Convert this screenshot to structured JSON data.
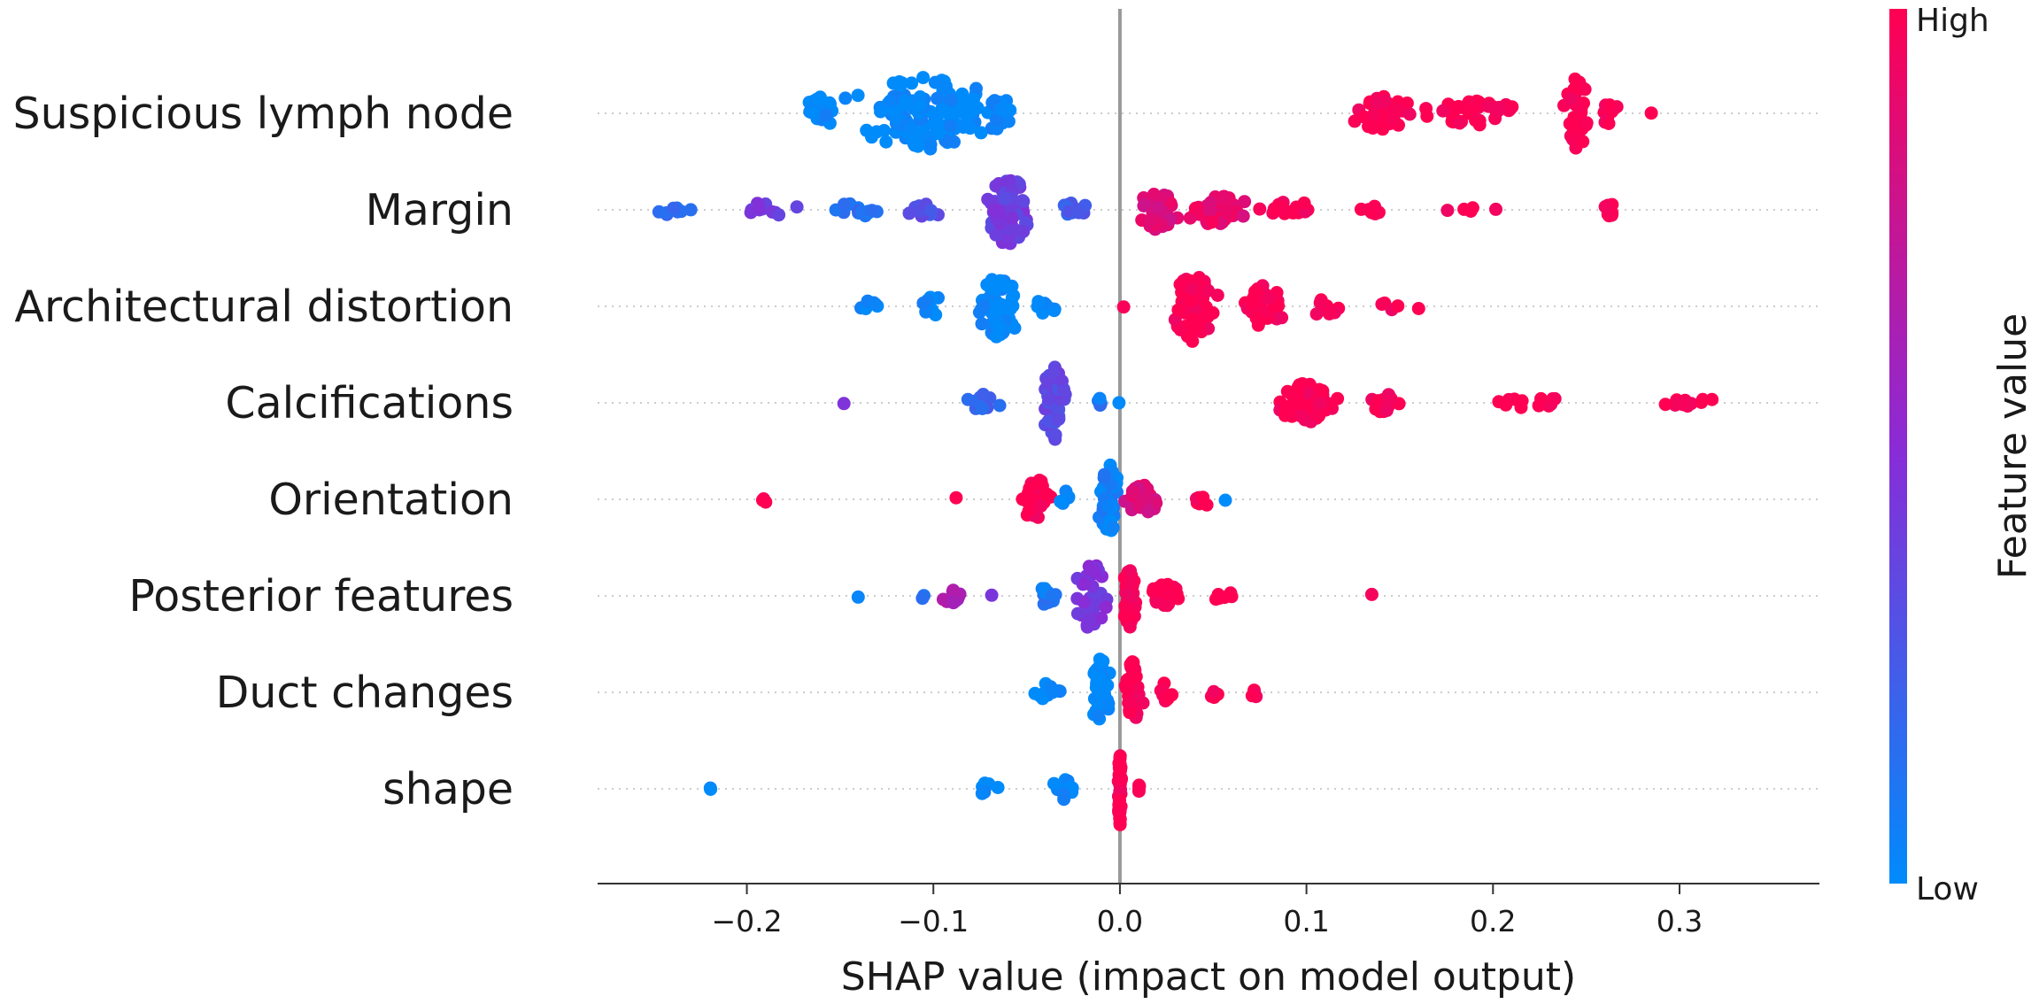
{
  "chart_data": {
    "type": "scatter",
    "subtype": "shap-beeswarm",
    "title": "",
    "xlabel": "SHAP value (impact on model output)",
    "ylabel": "",
    "xlim": [
      -0.28,
      0.375
    ],
    "xticks": [
      -0.2,
      -0.1,
      0.0,
      0.1,
      0.2,
      0.3
    ],
    "xtick_labels": [
      "−0.2",
      "−0.1",
      "0.0",
      "0.1",
      "0.2",
      "0.3"
    ],
    "zero_line": 0.0,
    "colorbar": {
      "label": "Feature value",
      "high_label": "High",
      "low_label": "Low",
      "high_color": "#ff0052",
      "low_color": "#008bfb"
    },
    "features": [
      {
        "name": "Suspicious lymph node",
        "clusters": [
          {
            "c": -0.105,
            "w": 0.055,
            "n": 140,
            "v": 0.0,
            "s": 1.0
          },
          {
            "c": -0.16,
            "w": 0.012,
            "n": 25,
            "v": 0.0,
            "s": 0.45
          },
          {
            "c": -0.065,
            "w": 0.008,
            "n": 20,
            "v": 0.0,
            "s": 0.45
          },
          {
            "c": 0.14,
            "w": 0.02,
            "n": 45,
            "v": 1.0,
            "s": 0.55
          },
          {
            "c": 0.19,
            "w": 0.03,
            "n": 40,
            "v": 1.0,
            "s": 0.35
          },
          {
            "c": 0.245,
            "w": 0.008,
            "n": 40,
            "v": 1.0,
            "s": 1.0
          },
          {
            "c": 0.262,
            "w": 0.008,
            "n": 10,
            "v": 1.0,
            "s": 0.35
          },
          {
            "c": 0.285,
            "w": 0.002,
            "n": 1,
            "v": 1.0,
            "s": 0.1
          }
        ]
      },
      {
        "name": "Margin",
        "clusters": [
          {
            "c": -0.24,
            "w": 0.015,
            "n": 8,
            "v": 0.2,
            "s": 0.15
          },
          {
            "c": -0.19,
            "w": 0.02,
            "n": 12,
            "v": 0.4,
            "s": 0.2
          },
          {
            "c": -0.14,
            "w": 0.02,
            "n": 15,
            "v": 0.15,
            "s": 0.2
          },
          {
            "c": -0.105,
            "w": 0.015,
            "n": 12,
            "v": 0.3,
            "s": 0.2
          },
          {
            "c": -0.06,
            "w": 0.015,
            "n": 80,
            "v": 0.4,
            "s": 1.0
          },
          {
            "c": -0.025,
            "w": 0.01,
            "n": 12,
            "v": 0.25,
            "s": 0.25
          },
          {
            "c": 0.02,
            "w": 0.015,
            "n": 50,
            "v": 0.85,
            "s": 0.55
          },
          {
            "c": 0.05,
            "w": 0.02,
            "n": 45,
            "v": 0.9,
            "s": 0.45
          },
          {
            "c": 0.09,
            "w": 0.02,
            "n": 20,
            "v": 1.0,
            "s": 0.25
          },
          {
            "c": 0.135,
            "w": 0.01,
            "n": 10,
            "v": 1.0,
            "s": 0.12
          },
          {
            "c": 0.19,
            "w": 0.02,
            "n": 5,
            "v": 1.0,
            "s": 0.08
          },
          {
            "c": 0.262,
            "w": 0.004,
            "n": 10,
            "v": 1.0,
            "s": 0.2
          }
        ]
      },
      {
        "name": "Architectural distortion",
        "clusters": [
          {
            "c": -0.135,
            "w": 0.012,
            "n": 6,
            "v": 0.0,
            "s": 0.15
          },
          {
            "c": -0.1,
            "w": 0.01,
            "n": 12,
            "v": 0.0,
            "s": 0.3
          },
          {
            "c": -0.065,
            "w": 0.015,
            "n": 70,
            "v": 0.0,
            "s": 0.9
          },
          {
            "c": -0.04,
            "w": 0.008,
            "n": 10,
            "v": 0.0,
            "s": 0.2
          },
          {
            "c": 0.04,
            "w": 0.015,
            "n": 70,
            "v": 1.0,
            "s": 1.0
          },
          {
            "c": 0.077,
            "w": 0.012,
            "n": 40,
            "v": 1.0,
            "s": 0.6
          },
          {
            "c": 0.11,
            "w": 0.01,
            "n": 10,
            "v": 1.0,
            "s": 0.3
          },
          {
            "c": 0.155,
            "w": 0.02,
            "n": 5,
            "v": 1.0,
            "s": 0.15
          },
          {
            "c": 0.002,
            "w": 0.001,
            "n": 1,
            "v": 1.0,
            "s": 0.05
          }
        ]
      },
      {
        "name": "Calcifications",
        "clusters": [
          {
            "c": -0.148,
            "w": 0.001,
            "n": 1,
            "v": 0.5,
            "s": 0.05
          },
          {
            "c": -0.075,
            "w": 0.012,
            "n": 15,
            "v": 0.2,
            "s": 0.25
          },
          {
            "c": -0.035,
            "w": 0.008,
            "n": 60,
            "v": 0.35,
            "s": 1.0
          },
          {
            "c": -0.012,
            "w": 0.004,
            "n": 4,
            "v": 0.1,
            "s": 0.15
          },
          {
            "c": 0.0,
            "w": 0.001,
            "n": 1,
            "v": 0.0,
            "s": 0.05
          },
          {
            "c": 0.1,
            "w": 0.02,
            "n": 55,
            "v": 1.0,
            "s": 0.55
          },
          {
            "c": 0.14,
            "w": 0.015,
            "n": 20,
            "v": 1.0,
            "s": 0.3
          },
          {
            "c": 0.22,
            "w": 0.03,
            "n": 12,
            "v": 1.0,
            "s": 0.15
          },
          {
            "c": 0.3,
            "w": 0.03,
            "n": 12,
            "v": 1.0,
            "s": 0.15
          }
        ]
      },
      {
        "name": "Orientation",
        "clusters": [
          {
            "c": -0.19,
            "w": 0.002,
            "n": 3,
            "v": 1.0,
            "s": 0.1
          },
          {
            "c": -0.088,
            "w": 0.001,
            "n": 1,
            "v": 1.0,
            "s": 0.05
          },
          {
            "c": -0.045,
            "w": 0.01,
            "n": 30,
            "v": 1.0,
            "s": 0.6
          },
          {
            "c": -0.03,
            "w": 0.004,
            "n": 6,
            "v": 0.0,
            "s": 0.3
          },
          {
            "c": -0.006,
            "w": 0.007,
            "n": 50,
            "v": 0.05,
            "s": 1.0
          },
          {
            "c": 0.012,
            "w": 0.012,
            "n": 35,
            "v": 0.85,
            "s": 0.4
          },
          {
            "c": 0.045,
            "w": 0.006,
            "n": 8,
            "v": 1.0,
            "s": 0.2
          },
          {
            "c": 0.057,
            "w": 0.001,
            "n": 1,
            "v": 0.0,
            "s": 0.05
          }
        ]
      },
      {
        "name": "Posterior features",
        "clusters": [
          {
            "c": -0.14,
            "w": 0.001,
            "n": 1,
            "v": 0.0,
            "s": 0.05
          },
          {
            "c": -0.105,
            "w": 0.002,
            "n": 2,
            "v": 0.1,
            "s": 0.1
          },
          {
            "c": -0.09,
            "w": 0.008,
            "n": 10,
            "v": 0.6,
            "s": 0.2
          },
          {
            "c": -0.068,
            "w": 0.001,
            "n": 1,
            "v": 0.5,
            "s": 0.05
          },
          {
            "c": -0.04,
            "w": 0.008,
            "n": 15,
            "v": 0.1,
            "s": 0.25
          },
          {
            "c": -0.015,
            "w": 0.01,
            "n": 45,
            "v": 0.45,
            "s": 1.0
          },
          {
            "c": 0.005,
            "w": 0.005,
            "n": 40,
            "v": 1.0,
            "s": 0.9
          },
          {
            "c": 0.025,
            "w": 0.012,
            "n": 25,
            "v": 1.0,
            "s": 0.35
          },
          {
            "c": 0.055,
            "w": 0.01,
            "n": 6,
            "v": 1.0,
            "s": 0.15
          },
          {
            "c": 0.135,
            "w": 0.001,
            "n": 1,
            "v": 1.0,
            "s": 0.05
          }
        ]
      },
      {
        "name": "Duct changes",
        "clusters": [
          {
            "c": -0.04,
            "w": 0.01,
            "n": 12,
            "v": 0.0,
            "s": 0.25
          },
          {
            "c": -0.01,
            "w": 0.006,
            "n": 40,
            "v": 0.0,
            "s": 1.0
          },
          {
            "c": 0.007,
            "w": 0.006,
            "n": 40,
            "v": 1.0,
            "s": 0.9
          },
          {
            "c": 0.025,
            "w": 0.006,
            "n": 10,
            "v": 1.0,
            "s": 0.3
          },
          {
            "c": 0.05,
            "w": 0.005,
            "n": 4,
            "v": 1.0,
            "s": 0.15
          },
          {
            "c": 0.072,
            "w": 0.004,
            "n": 4,
            "v": 1.0,
            "s": 0.15
          }
        ]
      },
      {
        "name": "shape",
        "clusters": [
          {
            "c": -0.22,
            "w": 0.001,
            "n": 2,
            "v": 0.0,
            "s": 0.05
          },
          {
            "c": -0.07,
            "w": 0.01,
            "n": 8,
            "v": 0.0,
            "s": 0.2
          },
          {
            "c": -0.03,
            "w": 0.01,
            "n": 12,
            "v": 0.0,
            "s": 0.3
          },
          {
            "c": 0.0,
            "w": 0.001,
            "n": 50,
            "v": 1.0,
            "s": 1.0
          },
          {
            "c": 0.01,
            "w": 0.002,
            "n": 4,
            "v": 1.0,
            "s": 0.15
          }
        ]
      }
    ]
  }
}
